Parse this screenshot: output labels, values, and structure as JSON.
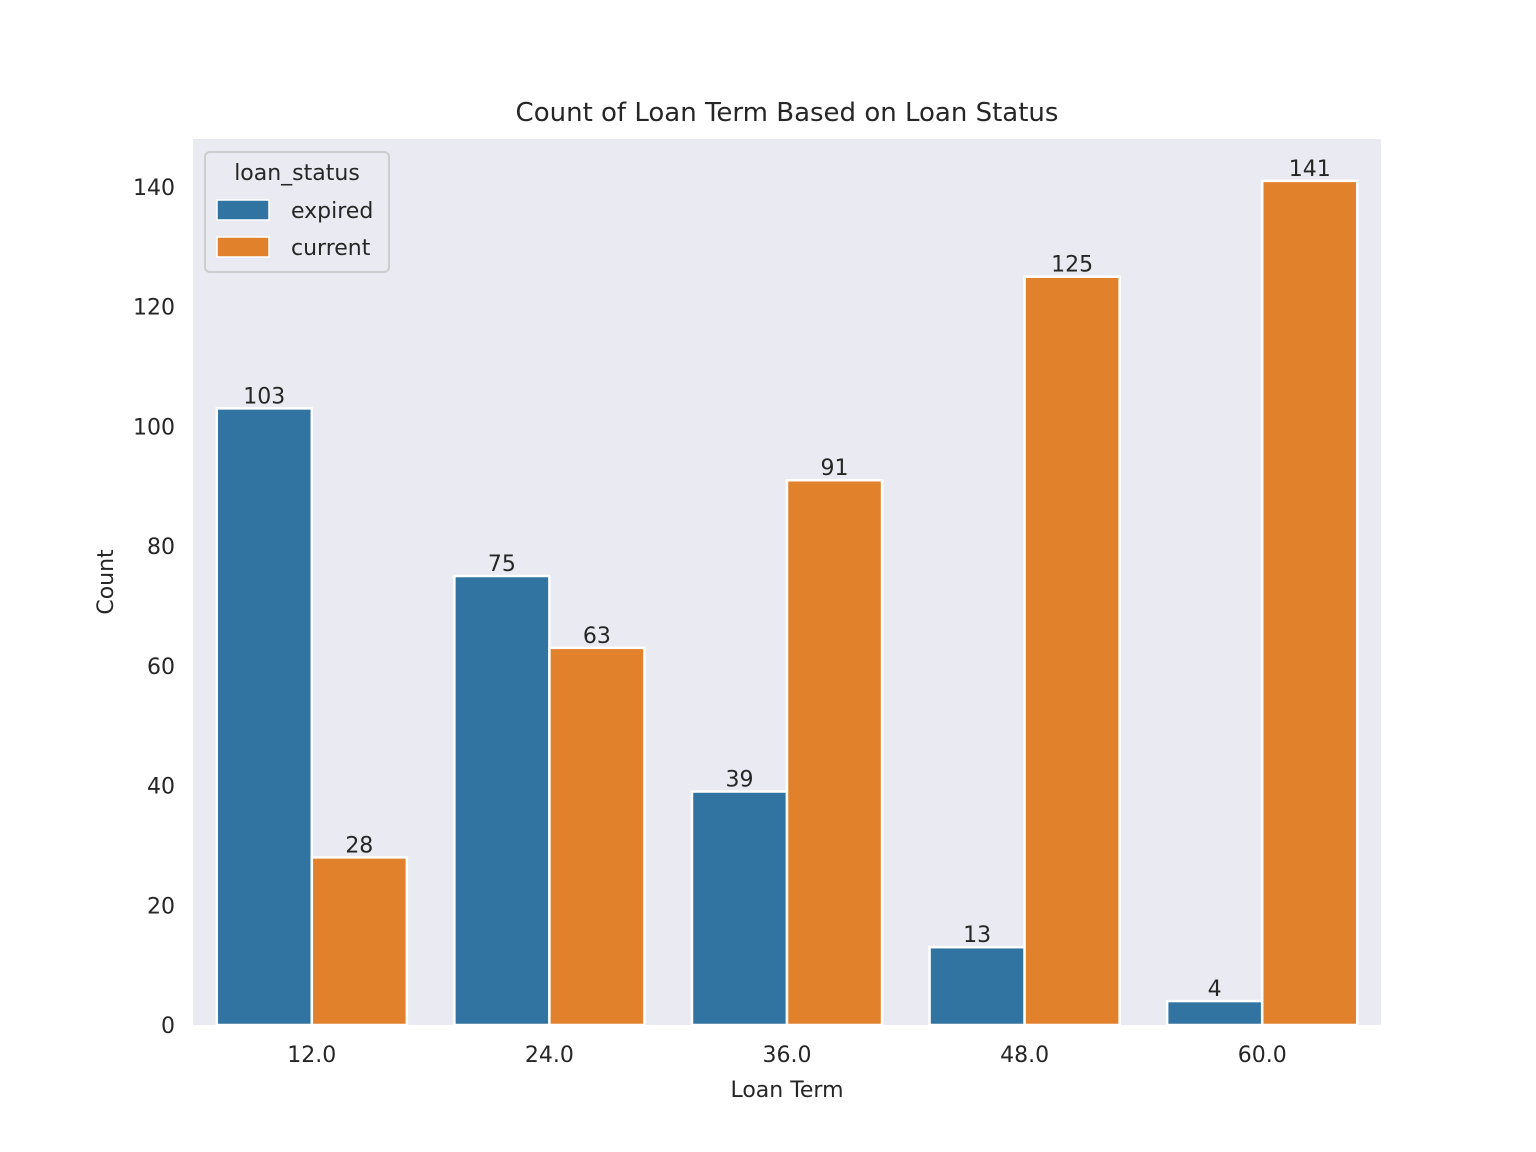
{
  "chart_data": {
    "type": "bar",
    "title": "Count of Loan Term Based on Loan Status",
    "xlabel": "Loan Term",
    "ylabel": "Count",
    "categories": [
      "12.0",
      "24.0",
      "36.0",
      "48.0",
      "60.0"
    ],
    "series": [
      {
        "name": "expired",
        "color": "#3274a1",
        "values": [
          103,
          75,
          39,
          13,
          4
        ]
      },
      {
        "name": "current",
        "color": "#e1812c",
        "values": [
          28,
          63,
          91,
          125,
          141
        ]
      }
    ],
    "ylim": [
      0,
      148
    ],
    "yticks": [
      0,
      20,
      40,
      60,
      80,
      100,
      120,
      140
    ],
    "grid": false,
    "background": "#eaeaf2",
    "legend": {
      "title": "loan_status",
      "placement": "top-left"
    }
  }
}
